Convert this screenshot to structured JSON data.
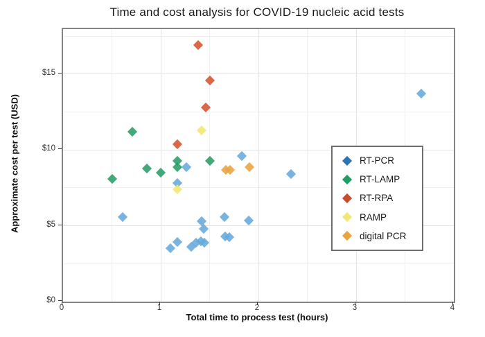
{
  "title": "Time and cost analysis for COVID-19 nucleic acid tests",
  "chart_data": {
    "type": "scatter",
    "title": "Time and cost analysis for COVID-19 nucleic acid tests",
    "xlabel": "Total time to process test (hours)",
    "ylabel": "Approximate cost per test (USD)",
    "marker": "diamond",
    "grid": true,
    "legend_position": "inside-right",
    "xlim": [
      0,
      4
    ],
    "ylim": [
      0,
      17.97
    ],
    "x_major_ticks": [
      0,
      1,
      2,
      3,
      4
    ],
    "x_minor_ticks": [
      0.5,
      1.5,
      2.5,
      3.5
    ],
    "y_major_ticks": [
      0,
      5,
      10,
      15
    ],
    "y_minor_ticks": [
      2.5,
      7.5,
      12.5,
      17.5
    ],
    "x_tick_labels": [
      "0",
      "1",
      "2",
      "3",
      "4"
    ],
    "y_tick_labels": [
      "$0",
      "$5",
      "$10",
      "$15"
    ],
    "series": [
      {
        "name": "RT-PCR",
        "color": "#66a9db",
        "legend_color": "#2e75b6",
        "points": [
          [
            0.61,
            5.6
          ],
          [
            1.1,
            3.5
          ],
          [
            1.17,
            3.95
          ],
          [
            1.31,
            3.6
          ],
          [
            1.36,
            3.9
          ],
          [
            1.41,
            4.0
          ],
          [
            1.45,
            3.9
          ],
          [
            1.42,
            5.3
          ],
          [
            1.44,
            4.8
          ],
          [
            1.65,
            5.6
          ],
          [
            1.66,
            4.3
          ],
          [
            1.7,
            4.25
          ],
          [
            1.9,
            5.35
          ],
          [
            1.26,
            8.85
          ],
          [
            1.83,
            9.6
          ],
          [
            2.33,
            8.4
          ],
          [
            3.67,
            13.7
          ],
          [
            1.17,
            7.8
          ]
        ]
      },
      {
        "name": "RT-LAMP",
        "color": "#2a9d68",
        "legend_color": "#1f9e63",
        "points": [
          [
            0.5,
            8.1
          ],
          [
            0.71,
            11.2
          ],
          [
            0.86,
            8.8
          ],
          [
            1.0,
            8.5
          ],
          [
            1.17,
            9.3
          ],
          [
            1.17,
            8.85
          ],
          [
            1.5,
            9.3
          ]
        ]
      },
      {
        "name": "RT-RPA",
        "color": "#d4532f",
        "legend_color": "#c94a2c",
        "points": [
          [
            1.38,
            16.9
          ],
          [
            1.5,
            14.6
          ],
          [
            1.46,
            12.8
          ],
          [
            1.17,
            10.4
          ]
        ]
      },
      {
        "name": "RAMP",
        "color": "#f1e76e",
        "legend_color": "#f0e778",
        "points": [
          [
            1.42,
            11.3
          ],
          [
            1.17,
            7.4
          ]
        ]
      },
      {
        "name": "digital PCR",
        "color": "#e9a440",
        "legend_color": "#e9a440",
        "points": [
          [
            1.67,
            8.7
          ],
          [
            1.71,
            8.7
          ],
          [
            1.91,
            8.85
          ]
        ]
      }
    ]
  }
}
